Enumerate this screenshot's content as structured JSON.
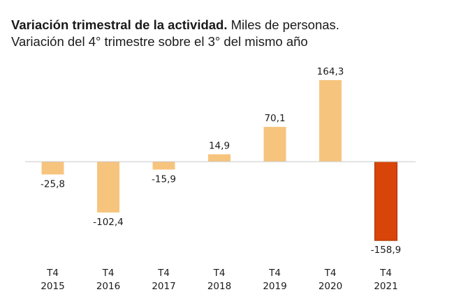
{
  "header": {
    "title_bold": "Variación trimestral de la actividad.",
    "title_rest": " Miles de personas.",
    "subtitle": "Variación del 4° trimestre sobre el 3° del mismo año"
  },
  "chart_data": {
    "type": "bar",
    "title": "Variación trimestral de la actividad. Miles de personas.",
    "subtitle": "Variación del 4° trimestre sobre el 3° del mismo año",
    "categories": [
      [
        "T4",
        "2015"
      ],
      [
        "T4",
        "2016"
      ],
      [
        "T4",
        "2017"
      ],
      [
        "T4",
        "2018"
      ],
      [
        "T4",
        "2019"
      ],
      [
        "T4",
        "2020"
      ],
      [
        "T4",
        "2021"
      ]
    ],
    "values": [
      -25.8,
      -102.4,
      -15.9,
      14.9,
      70.1,
      164.3,
      -158.9
    ],
    "value_labels": [
      "-25,8",
      "-102,4",
      "-15,9",
      "14,9",
      "70,1",
      "164,3",
      "-158,9"
    ],
    "colors": {
      "default": "#f7c47e",
      "highlight": "#d94408",
      "highlight_border": "#a83000",
      "baseline": "#c8c8c8"
    },
    "highlight_index": 6,
    "grid": false,
    "legend": "none",
    "xlabel": "",
    "ylabel": ""
  }
}
